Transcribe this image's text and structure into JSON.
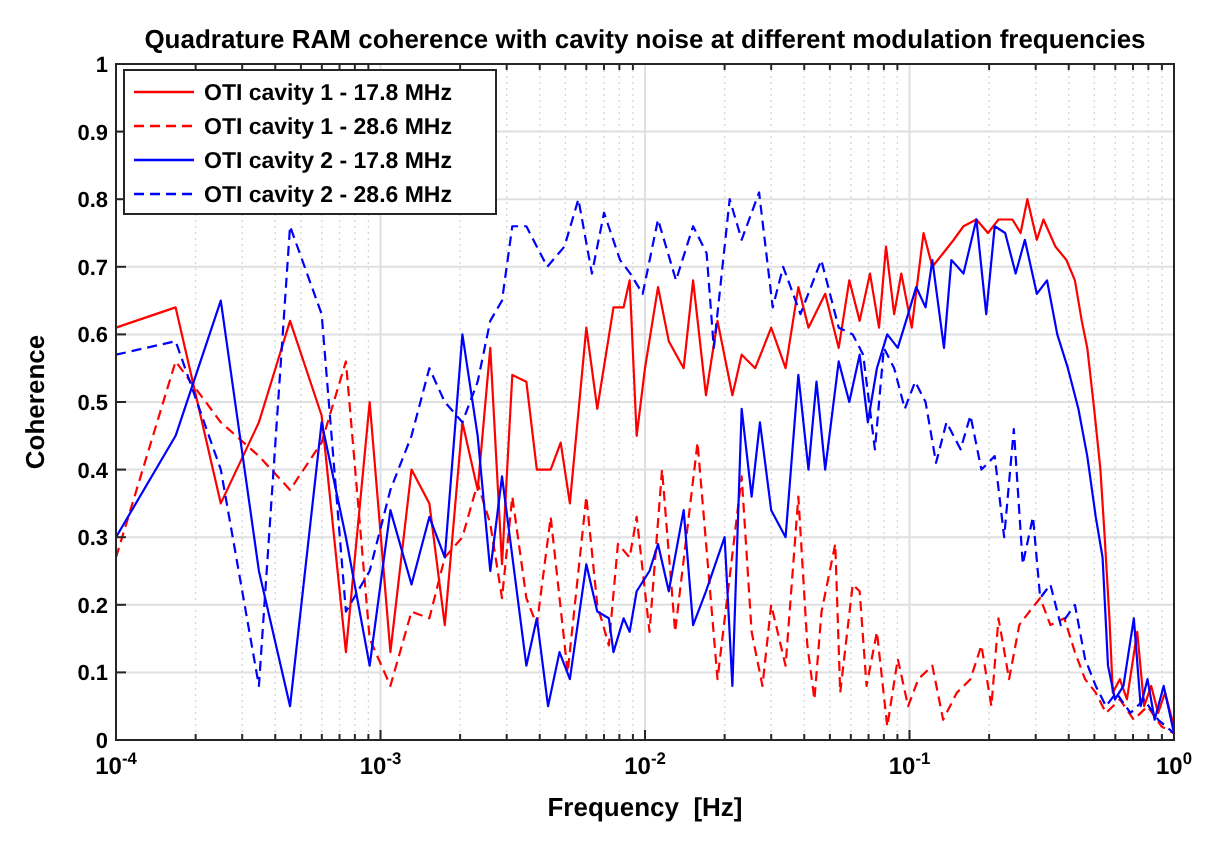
{
  "chart_data": {
    "type": "line",
    "title": "Quadrature RAM coherence with cavity noise at different modulation frequencies",
    "xlabel": "Frequency  [Hz]",
    "ylabel": "Coherence",
    "log": "x",
    "grid": true,
    "legend": "top left",
    "xlim": [
      0.0001,
      1
    ],
    "xticks": [
      {
        "value": 0.0001,
        "label": "10$^{-4}$"
      },
      {
        "value": 0.001,
        "label": "10$^{-3}$"
      },
      {
        "value": 0.01,
        "label": "10$^{-2}$"
      },
      {
        "value": 0.1,
        "label": "10$^{-1}$"
      },
      {
        "value": 1,
        "label": "10$^{0}$"
      }
    ],
    "ylim": [
      0,
      1
    ],
    "yticks": [
      0,
      0.1,
      0.2,
      0.3,
      0.4,
      0.5,
      0.6,
      0.7,
      0.8,
      0.9,
      1
    ],
    "series": [
      {
        "name": "OTI cavity 1 - 17.8 MHz",
        "color": "#ff0000",
        "line_style": "solid",
        "x": [
          0.0001,
          0.000168,
          0.000249,
          0.000347,
          0.000455,
          0.000599,
          0.00074,
          0.00091,
          0.00109,
          0.00131,
          0.00153,
          0.00175,
          0.00204,
          0.00233,
          0.0026,
          0.00288,
          0.00315,
          0.00356,
          0.0039,
          0.0044,
          0.0048,
          0.0052,
          0.006,
          0.0066,
          0.0076,
          0.0083,
          0.00875,
          0.0093,
          0.01,
          0.0112,
          0.0123,
          0.014,
          0.0152,
          0.017,
          0.0188,
          0.0214,
          0.0232,
          0.0261,
          0.03,
          0.034,
          0.038,
          0.0415,
          0.048,
          0.054,
          0.0592,
          0.0648,
          0.0709,
          0.0767,
          0.0815,
          0.0875,
          0.0931,
          0.102,
          0.113,
          0.122,
          0.134,
          0.147,
          0.16,
          0.179,
          0.198,
          0.217,
          0.245,
          0.263,
          0.279,
          0.303,
          0.321,
          0.356,
          0.392,
          0.422,
          0.448,
          0.47,
          0.499,
          0.527,
          0.547,
          0.57,
          0.587,
          0.624,
          0.664,
          0.726,
          0.771,
          0.82,
          0.871,
          0.925,
          1
        ],
        "values": [
          0.61,
          0.64,
          0.35,
          0.47,
          0.62,
          0.48,
          0.13,
          0.5,
          0.13,
          0.4,
          0.35,
          0.17,
          0.47,
          0.37,
          0.58,
          0.26,
          0.54,
          0.53,
          0.4,
          0.4,
          0.44,
          0.35,
          0.61,
          0.49,
          0.64,
          0.64,
          0.68,
          0.45,
          0.55,
          0.67,
          0.59,
          0.55,
          0.68,
          0.51,
          0.62,
          0.51,
          0.57,
          0.55,
          0.61,
          0.55,
          0.67,
          0.61,
          0.66,
          0.58,
          0.68,
          0.62,
          0.69,
          0.61,
          0.73,
          0.63,
          0.69,
          0.61,
          0.75,
          0.7,
          0.72,
          0.74,
          0.76,
          0.77,
          0.75,
          0.77,
          0.77,
          0.75,
          0.8,
          0.74,
          0.77,
          0.73,
          0.71,
          0.68,
          0.62,
          0.58,
          0.49,
          0.4,
          0.3,
          0.18,
          0.07,
          0.09,
          0.06,
          0.16,
          0.05,
          0.08,
          0.04,
          0.07,
          0.02
        ]
      },
      {
        "name": "OTI cavity 1 - 28.6 MHz",
        "color": "#ff0000",
        "line_style": "dashed",
        "x": [
          0.0001,
          0.000168,
          0.000249,
          0.000347,
          0.000455,
          0.000599,
          0.00074,
          0.00091,
          0.00109,
          0.00131,
          0.00153,
          0.00175,
          0.00204,
          0.00233,
          0.0026,
          0.00288,
          0.00315,
          0.00356,
          0.0039,
          0.0044,
          0.0051,
          0.006,
          0.0066,
          0.0073,
          0.0079,
          0.00875,
          0.0093,
          0.0104,
          0.0116,
          0.013,
          0.0158,
          0.0188,
          0.0232,
          0.0253,
          0.0278,
          0.03,
          0.034,
          0.038,
          0.0411,
          0.0437,
          0.0465,
          0.0524,
          0.0547,
          0.061,
          0.0648,
          0.0688,
          0.0753,
          0.0824,
          0.0903,
          0.0988,
          0.108,
          0.122,
          0.134,
          0.151,
          0.17,
          0.187,
          0.204,
          0.217,
          0.238,
          0.26,
          0.284,
          0.312,
          0.341,
          0.385,
          0.422,
          0.461,
          0.506,
          0.553,
          0.624,
          0.705,
          0.794,
          0.897,
          1
        ],
        "values": [
          0.27,
          0.56,
          0.47,
          0.42,
          0.37,
          0.44,
          0.56,
          0.15,
          0.08,
          0.19,
          0.18,
          0.27,
          0.3,
          0.38,
          0.32,
          0.21,
          0.36,
          0.21,
          0.17,
          0.33,
          0.1,
          0.36,
          0.2,
          0.14,
          0.29,
          0.27,
          0.33,
          0.16,
          0.4,
          0.16,
          0.44,
          0.09,
          0.39,
          0.16,
          0.08,
          0.2,
          0.11,
          0.36,
          0.14,
          0.06,
          0.19,
          0.29,
          0.07,
          0.23,
          0.22,
          0.08,
          0.16,
          0.02,
          0.12,
          0.05,
          0.09,
          0.11,
          0.03,
          0.07,
          0.09,
          0.14,
          0.05,
          0.18,
          0.09,
          0.17,
          0.19,
          0.21,
          0.17,
          0.18,
          0.13,
          0.09,
          0.07,
          0.04,
          0.06,
          0.03,
          0.05,
          0.02,
          0.01
        ]
      },
      {
        "name": "OTI cavity 2 - 17.8 MHz",
        "color": "#0000ff",
        "line_style": "solid",
        "x": [
          0.0001,
          0.000168,
          0.000249,
          0.000347,
          0.000455,
          0.000599,
          0.00074,
          0.00091,
          0.00109,
          0.00131,
          0.00153,
          0.00175,
          0.00204,
          0.00233,
          0.0026,
          0.00288,
          0.00356,
          0.0039,
          0.0043,
          0.00475,
          0.0052,
          0.006,
          0.0066,
          0.0073,
          0.0076,
          0.0083,
          0.00875,
          0.0093,
          0.0104,
          0.0112,
          0.0123,
          0.014,
          0.0152,
          0.017,
          0.02,
          0.0214,
          0.0232,
          0.0253,
          0.0272,
          0.03,
          0.034,
          0.038,
          0.0415,
          0.0445,
          0.048,
          0.054,
          0.0592,
          0.0648,
          0.0696,
          0.0753,
          0.0824,
          0.0903,
          0.0988,
          0.106,
          0.115,
          0.122,
          0.135,
          0.144,
          0.16,
          0.179,
          0.195,
          0.21,
          0.23,
          0.252,
          0.273,
          0.303,
          0.331,
          0.362,
          0.397,
          0.435,
          0.47,
          0.506,
          0.537,
          0.563,
          0.598,
          0.644,
          0.705,
          0.748,
          0.794,
          0.845,
          0.914,
          1
        ],
        "values": [
          0.3,
          0.45,
          0.65,
          0.25,
          0.05,
          0.47,
          0.3,
          0.11,
          0.34,
          0.23,
          0.33,
          0.27,
          0.6,
          0.45,
          0.25,
          0.39,
          0.11,
          0.18,
          0.05,
          0.13,
          0.09,
          0.26,
          0.19,
          0.18,
          0.13,
          0.18,
          0.16,
          0.22,
          0.25,
          0.29,
          0.22,
          0.34,
          0.17,
          0.22,
          0.3,
          0.08,
          0.49,
          0.36,
          0.47,
          0.34,
          0.3,
          0.54,
          0.4,
          0.53,
          0.4,
          0.56,
          0.5,
          0.57,
          0.47,
          0.55,
          0.6,
          0.58,
          0.63,
          0.67,
          0.64,
          0.71,
          0.58,
          0.71,
          0.69,
          0.77,
          0.63,
          0.76,
          0.75,
          0.69,
          0.74,
          0.66,
          0.68,
          0.6,
          0.55,
          0.49,
          0.42,
          0.33,
          0.27,
          0.11,
          0.06,
          0.08,
          0.18,
          0.05,
          0.09,
          0.03,
          0.08,
          0.01
        ]
      },
      {
        "name": "OTI cavity 2 - 28.6 MHz",
        "color": "#0000ff",
        "line_style": "dashed",
        "x": [
          0.0001,
          0.000168,
          0.000249,
          0.000347,
          0.000455,
          0.000599,
          0.00074,
          0.00091,
          0.00109,
          0.00131,
          0.00153,
          0.00175,
          0.00204,
          0.00233,
          0.0026,
          0.00288,
          0.00315,
          0.00356,
          0.00427,
          0.00496,
          0.0056,
          0.0063,
          0.007,
          0.00805,
          0.0088,
          0.0098,
          0.0112,
          0.0131,
          0.0152,
          0.0171,
          0.0182,
          0.0209,
          0.0232,
          0.027,
          0.0304,
          0.0333,
          0.0387,
          0.0464,
          0.054,
          0.061,
          0.0668,
          0.074,
          0.08,
          0.0875,
          0.096,
          0.105,
          0.115,
          0.126,
          0.138,
          0.156,
          0.17,
          0.187,
          0.21,
          0.228,
          0.248,
          0.268,
          0.293,
          0.312,
          0.341,
          0.373,
          0.422,
          0.461,
          0.506,
          0.553,
          0.605,
          0.684,
          0.771,
          0.871,
          1
        ],
        "values": [
          0.57,
          0.59,
          0.4,
          0.08,
          0.76,
          0.63,
          0.19,
          0.25,
          0.37,
          0.45,
          0.55,
          0.5,
          0.47,
          0.53,
          0.62,
          0.65,
          0.76,
          0.76,
          0.7,
          0.73,
          0.8,
          0.69,
          0.78,
          0.71,
          0.69,
          0.66,
          0.77,
          0.68,
          0.76,
          0.72,
          0.58,
          0.8,
          0.74,
          0.81,
          0.64,
          0.7,
          0.63,
          0.71,
          0.61,
          0.6,
          0.57,
          0.43,
          0.58,
          0.55,
          0.49,
          0.53,
          0.5,
          0.41,
          0.47,
          0.43,
          0.48,
          0.4,
          0.42,
          0.3,
          0.46,
          0.26,
          0.33,
          0.21,
          0.23,
          0.17,
          0.2,
          0.12,
          0.08,
          0.05,
          0.07,
          0.04,
          0.06,
          0.03,
          0.01
        ]
      }
    ]
  }
}
